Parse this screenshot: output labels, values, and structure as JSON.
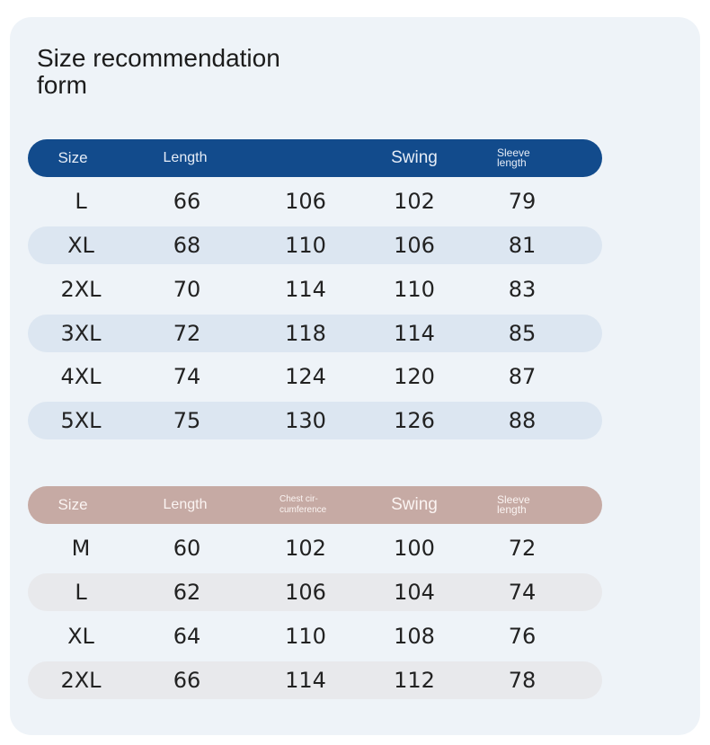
{
  "title": "Size recommendation form",
  "table1": {
    "headers": [
      "Size",
      "Length",
      "",
      "Swing",
      "Sleeve length"
    ],
    "rows": [
      [
        "L",
        "66",
        "106",
        "102",
        "79"
      ],
      [
        "XL",
        "68",
        "110",
        "106",
        "81"
      ],
      [
        "2XL",
        "70",
        "114",
        "110",
        "83"
      ],
      [
        "3XL",
        "72",
        "118",
        "114",
        "85"
      ],
      [
        "4XL",
        "74",
        "124",
        "120",
        "87"
      ],
      [
        "5XL",
        "75",
        "130",
        "126",
        "88"
      ]
    ]
  },
  "table2": {
    "headers": [
      "Size",
      "Length",
      "Chest cir-cumference",
      "Swing",
      "Sleeve length"
    ],
    "rows": [
      [
        "M",
        "60",
        "102",
        "100",
        "72"
      ],
      [
        "L",
        "62",
        "106",
        "104",
        "74"
      ],
      [
        "XL",
        "64",
        "110",
        "108",
        "76"
      ],
      [
        "2XL",
        "66",
        "114",
        "112",
        "78"
      ]
    ]
  },
  "colors": {
    "card_background": "#eef3f8",
    "table1_header": "#124b8c",
    "table1_stripe": "#dce6f1",
    "table2_header": "#c6aaa4",
    "table2_stripe": "#e8e9ec"
  }
}
